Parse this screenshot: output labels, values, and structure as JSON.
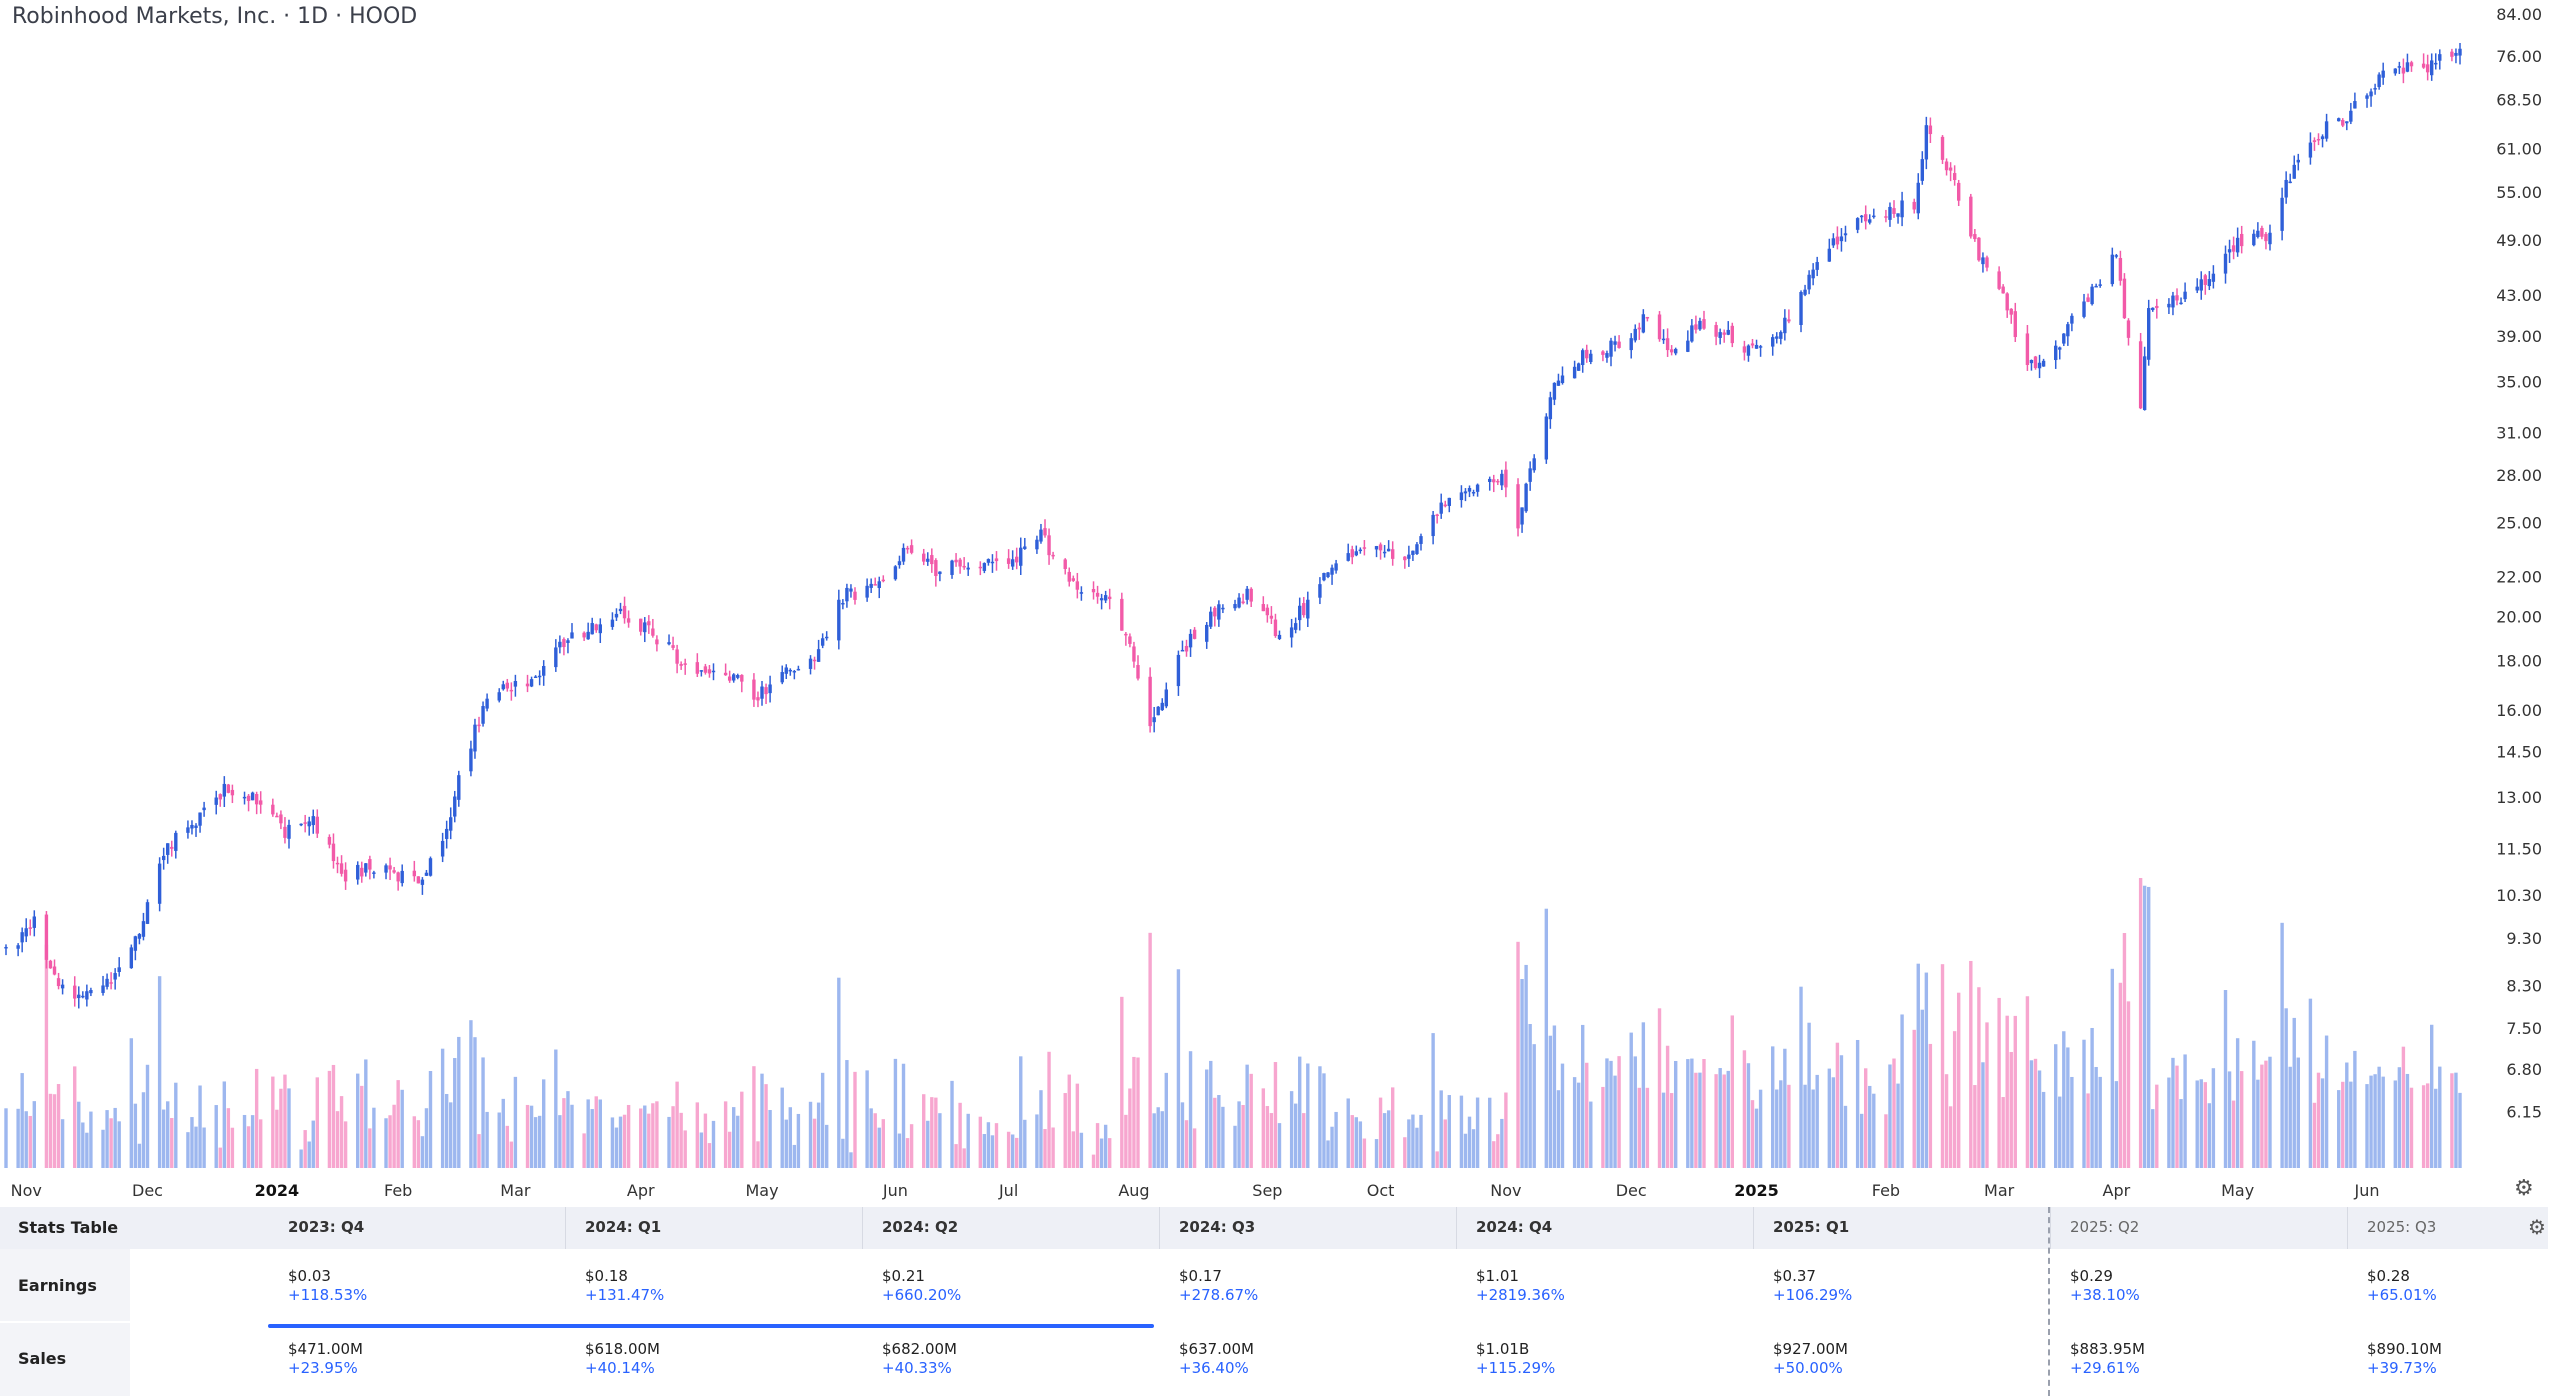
{
  "header": {
    "title": "Robinhood Markets, Inc. · 1D · HOOD"
  },
  "colors": {
    "up": "#2f5fd8",
    "down": "#f25aa8",
    "up_vol": "#9db7ef",
    "down_vol": "#f7a6cf",
    "accent": "#2962ff"
  },
  "chart_data": {
    "type": "candlestick",
    "title": "Robinhood Markets, Inc. · 1D · HOOD",
    "y_scale": "log",
    "ylim": [
      5.8,
      84
    ],
    "y_ticks": [
      "84.00",
      "76.00",
      "68.50",
      "61.00",
      "55.00",
      "49.00",
      "43.00",
      "39.00",
      "35.00",
      "31.00",
      "28.00",
      "25.00",
      "22.00",
      "20.00",
      "18.00",
      "16.00",
      "14.50",
      "13.00",
      "11.50",
      "10.30",
      "9.30",
      "8.30",
      "7.50",
      "6.80",
      "6.15"
    ],
    "x_ticks": [
      {
        "label": "Nov",
        "bold": false
      },
      {
        "label": "Dec",
        "bold": false
      },
      {
        "label": "2024",
        "bold": true
      },
      {
        "label": "Feb",
        "bold": false
      },
      {
        "label": "Mar",
        "bold": false
      },
      {
        "label": "Apr",
        "bold": false
      },
      {
        "label": "May",
        "bold": false
      },
      {
        "label": "Jun",
        "bold": false
      },
      {
        "label": "Jul",
        "bold": false
      },
      {
        "label": "Aug",
        "bold": false
      },
      {
        "label": "Sep",
        "bold": false
      },
      {
        "label": "Oct",
        "bold": false
      },
      {
        "label": "Nov",
        "bold": false
      },
      {
        "label": "Dec",
        "bold": false
      },
      {
        "label": "2025",
        "bold": true
      },
      {
        "label": "Feb",
        "bold": false
      },
      {
        "label": "Mar",
        "bold": false
      },
      {
        "label": "Apr",
        "bold": false
      },
      {
        "label": "May",
        "bold": false
      },
      {
        "label": "Jun",
        "bold": false
      }
    ],
    "x_tick_dates": [
      "2023-11-01",
      "2023-12-01",
      "2024-01-02",
      "2024-02-01",
      "2024-03-01",
      "2024-04-01",
      "2024-05-01",
      "2024-06-03",
      "2024-07-01",
      "2024-08-01",
      "2024-09-03",
      "2024-10-01",
      "2024-11-01",
      "2024-12-02",
      "2025-01-02",
      "2025-02-03",
      "2025-03-03",
      "2025-04-01",
      "2025-05-01",
      "2025-06-02"
    ],
    "date_range": [
      "2023-10-27",
      "2025-06-25"
    ],
    "close_path": [
      {
        "date": "2023-10-27",
        "close": 9.0
      },
      {
        "date": "2023-11-03",
        "close": 9.7
      },
      {
        "date": "2023-11-09",
        "close": 8.2
      },
      {
        "date": "2023-11-17",
        "close": 8.1
      },
      {
        "date": "2023-11-24",
        "close": 8.6
      },
      {
        "date": "2023-11-30",
        "close": 9.6
      },
      {
        "date": "2023-12-05",
        "close": 11.5
      },
      {
        "date": "2023-12-12",
        "close": 12.2
      },
      {
        "date": "2023-12-20",
        "close": 13.3
      },
      {
        "date": "2023-12-28",
        "close": 13.0
      },
      {
        "date": "2024-01-04",
        "close": 12.0
      },
      {
        "date": "2024-01-11",
        "close": 12.3
      },
      {
        "date": "2024-01-19",
        "close": 10.8
      },
      {
        "date": "2024-01-26",
        "close": 11.0
      },
      {
        "date": "2024-02-06",
        "close": 10.6
      },
      {
        "date": "2024-02-13",
        "close": 12.0
      },
      {
        "date": "2024-02-16",
        "close": 13.7
      },
      {
        "date": "2024-02-23",
        "close": 16.5
      },
      {
        "date": "2024-03-05",
        "close": 17.3
      },
      {
        "date": "2024-03-12",
        "close": 18.6
      },
      {
        "date": "2024-03-20",
        "close": 19.6
      },
      {
        "date": "2024-03-27",
        "close": 20.2
      },
      {
        "date": "2024-04-05",
        "close": 19.0
      },
      {
        "date": "2024-04-15",
        "close": 17.4
      },
      {
        "date": "2024-04-22",
        "close": 17.6
      },
      {
        "date": "2024-04-30",
        "close": 16.5
      },
      {
        "date": "2024-05-06",
        "close": 17.5
      },
      {
        "date": "2024-05-14",
        "close": 18.2
      },
      {
        "date": "2024-05-21",
        "close": 21.0
      },
      {
        "date": "2024-05-29",
        "close": 21.3
      },
      {
        "date": "2024-06-05",
        "close": 23.2
      },
      {
        "date": "2024-06-13",
        "close": 22.4
      },
      {
        "date": "2024-06-21",
        "close": 22.8
      },
      {
        "date": "2024-07-01",
        "close": 22.6
      },
      {
        "date": "2024-07-09",
        "close": 24.2
      },
      {
        "date": "2024-07-18",
        "close": 21.3
      },
      {
        "date": "2024-07-26",
        "close": 20.8
      },
      {
        "date": "2024-08-01",
        "close": 18.0
      },
      {
        "date": "2024-08-05",
        "close": 15.3
      },
      {
        "date": "2024-08-12",
        "close": 18.2
      },
      {
        "date": "2024-08-20",
        "close": 20.1
      },
      {
        "date": "2024-08-29",
        "close": 21.0
      },
      {
        "date": "2024-09-06",
        "close": 19.2
      },
      {
        "date": "2024-09-13",
        "close": 20.6
      },
      {
        "date": "2024-09-20",
        "close": 22.8
      },
      {
        "date": "2024-09-30",
        "close": 23.4
      },
      {
        "date": "2024-10-08",
        "close": 22.9
      },
      {
        "date": "2024-10-16",
        "close": 26.0
      },
      {
        "date": "2024-10-24",
        "close": 27.2
      },
      {
        "date": "2024-10-31",
        "close": 27.8
      },
      {
        "date": "2024-11-04",
        "close": 24.5
      },
      {
        "date": "2024-11-07",
        "close": 28.4
      },
      {
        "date": "2024-11-13",
        "close": 34.8
      },
      {
        "date": "2024-11-21",
        "close": 37.5
      },
      {
        "date": "2024-11-29",
        "close": 38.2
      },
      {
        "date": "2024-12-06",
        "close": 41.0
      },
      {
        "date": "2024-12-12",
        "close": 37.2
      },
      {
        "date": "2024-12-19",
        "close": 40.5
      },
      {
        "date": "2024-12-30",
        "close": 38.0
      },
      {
        "date": "2025-01-08",
        "close": 39.5
      },
      {
        "date": "2025-01-16",
        "close": 45.8
      },
      {
        "date": "2025-01-24",
        "close": 50.2
      },
      {
        "date": "2025-02-03",
        "close": 52.5
      },
      {
        "date": "2025-02-10",
        "close": 53.6
      },
      {
        "date": "2025-02-13",
        "close": 64.0
      },
      {
        "date": "2025-02-20",
        "close": 56.0
      },
      {
        "date": "2025-02-26",
        "close": 47.5
      },
      {
        "date": "2025-03-04",
        "close": 43.5
      },
      {
        "date": "2025-03-10",
        "close": 36.0
      },
      {
        "date": "2025-03-17",
        "close": 38.0
      },
      {
        "date": "2025-03-25",
        "close": 43.0
      },
      {
        "date": "2025-04-01",
        "close": 47.5
      },
      {
        "date": "2025-04-04",
        "close": 38.5
      },
      {
        "date": "2025-04-07",
        "close": 32.5
      },
      {
        "date": "2025-04-09",
        "close": 41.5
      },
      {
        "date": "2025-04-16",
        "close": 42.5
      },
      {
        "date": "2025-04-24",
        "close": 45.0
      },
      {
        "date": "2025-05-01",
        "close": 48.8
      },
      {
        "date": "2025-05-08",
        "close": 49.5
      },
      {
        "date": "2025-05-13",
        "close": 55.8
      },
      {
        "date": "2025-05-20",
        "close": 63.0
      },
      {
        "date": "2025-05-28",
        "close": 65.5
      },
      {
        "date": "2025-06-04",
        "close": 71.5
      },
      {
        "date": "2025-06-12",
        "close": 74.5
      },
      {
        "date": "2025-06-18",
        "close": 74.0
      },
      {
        "date": "2025-06-25",
        "close": 78.5
      }
    ],
    "volume": {
      "style": "histogram",
      "up_color": "#9db7ef",
      "down_color": "#f7a6cf"
    }
  },
  "stats_table": {
    "title": "Stats Table",
    "quarters": [
      {
        "label": "2023: Q4",
        "future": false,
        "earnings": "$0.03",
        "earnings_pct": "+118.53%",
        "sales": "$471.00M",
        "sales_pct": "+23.95%"
      },
      {
        "label": "2024: Q1",
        "future": false,
        "earnings": "$0.18",
        "earnings_pct": "+131.47%",
        "sales": "$618.00M",
        "sales_pct": "+40.14%"
      },
      {
        "label": "2024: Q2",
        "future": false,
        "earnings": "$0.21",
        "earnings_pct": "+660.20%",
        "sales": "$682.00M",
        "sales_pct": "+40.33%"
      },
      {
        "label": "2024: Q3",
        "future": false,
        "earnings": "$0.17",
        "earnings_pct": "+278.67%",
        "sales": "$637.00M",
        "sales_pct": "+36.40%"
      },
      {
        "label": "2024: Q4",
        "future": false,
        "earnings": "$1.01",
        "earnings_pct": "+2819.36%",
        "sales": "$1.01B",
        "sales_pct": "+115.29%"
      },
      {
        "label": "2025: Q1",
        "future": false,
        "earnings": "$0.37",
        "earnings_pct": "+106.29%",
        "sales": "$927.00M",
        "sales_pct": "+50.00%"
      },
      {
        "label": "2025: Q2",
        "future": true,
        "earnings": "$0.29",
        "earnings_pct": "+38.10%",
        "sales": "$883.95M",
        "sales_pct": "+29.61%"
      },
      {
        "label": "2025: Q3",
        "future": true,
        "earnings": "$0.28",
        "earnings_pct": "+65.01%",
        "sales": "$890.10M",
        "sales_pct": "+39.73%"
      }
    ],
    "rows": {
      "earnings": "Earnings",
      "sales": "Sales"
    }
  },
  "icons": {
    "chart_settings": "gear-icon",
    "table_settings": "gear-icon"
  }
}
